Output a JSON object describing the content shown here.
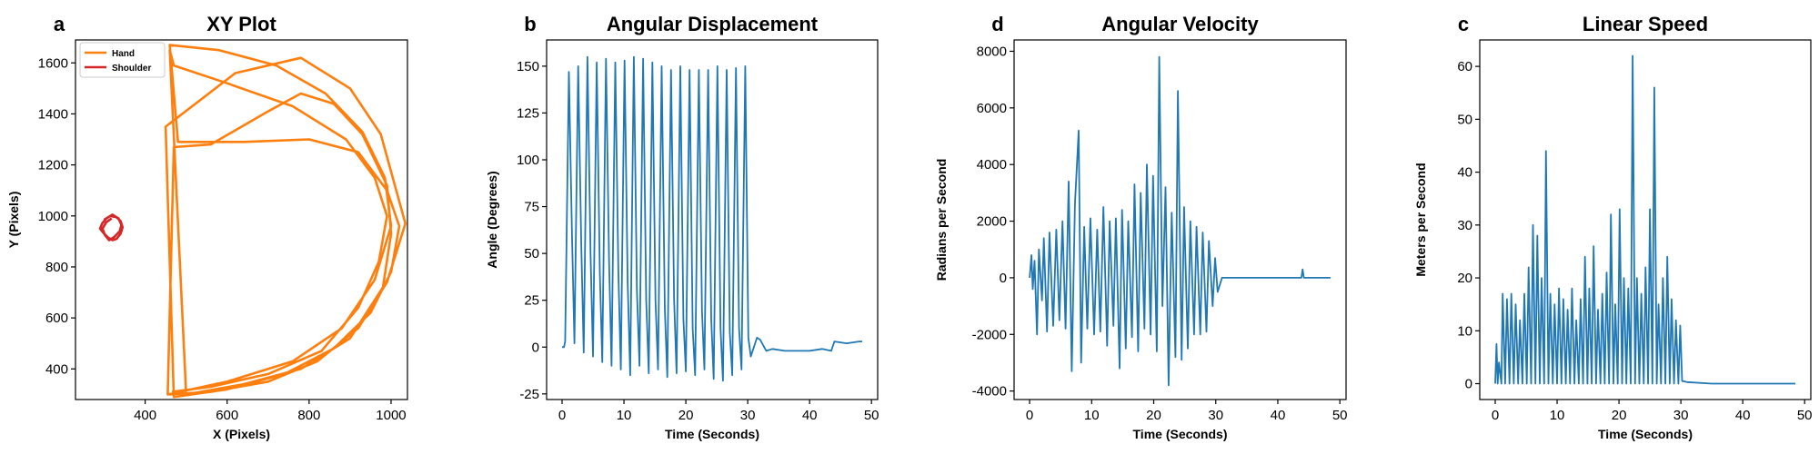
{
  "figure": {
    "colors": {
      "blue": "#1f77b4",
      "orange": "#ff7f0e",
      "red": "#d62728"
    }
  },
  "chart_data": [
    {
      "panel_letter": "a",
      "type": "line",
      "title": "XY Plot",
      "xlabel": "X (Pixels)",
      "ylabel": "Y (Pixels)",
      "xlim": [
        230,
        1040
      ],
      "ylim": [
        280,
        1690
      ],
      "xticks": [
        400,
        600,
        800,
        1000
      ],
      "yticks": [
        400,
        600,
        800,
        1000,
        1200,
        1400,
        1600
      ],
      "legend": {
        "placement": "top-left"
      },
      "series": [
        {
          "name": "Hand",
          "color": "#ff7f0e",
          "x": [
            455,
            600,
            760,
            880,
            960,
            1000,
            985,
            930,
            840,
            720,
            580,
            460,
            480,
            640,
            800,
            920,
            990,
            1020,
            1000,
            950,
            860,
            740,
            600,
            470,
            450,
            620,
            780,
            900,
            975,
            1035,
            990,
            920,
            820,
            700,
            560,
            455,
            470,
            560,
            700,
            780,
            860,
            930,
            990,
            1000,
            980,
            900,
            780,
            640,
            500,
            460,
            470,
            600,
            760,
            890,
            960,
            990,
            970,
            920,
            830,
            700,
            560,
            465
          ],
          "y": [
            300,
            350,
            430,
            560,
            750,
            960,
            1150,
            1330,
            1480,
            1590,
            1650,
            1670,
            1290,
            1290,
            1300,
            1250,
            1100,
            960,
            780,
            620,
            480,
            380,
            320,
            290,
            1350,
            1560,
            1620,
            1500,
            1320,
            970,
            740,
            560,
            430,
            350,
            310,
            300,
            1270,
            1280,
            1410,
            1480,
            1440,
            1320,
            1120,
            930,
            720,
            520,
            400,
            340,
            300,
            1650,
            1590,
            1520,
            1430,
            1300,
            1150,
            1000,
            820,
            640,
            470,
            380,
            330,
            310
          ]
        },
        {
          "name": "Shoulder",
          "color": "#d62728",
          "x": [
            300,
            315,
            330,
            340,
            345,
            340,
            330,
            320,
            310,
            300,
            290,
            295,
            305,
            320,
            335,
            342,
            338,
            325,
            312,
            302,
            296,
            305,
            318
          ],
          "y": [
            985,
            1000,
            995,
            980,
            955,
            930,
            910,
            905,
            915,
            930,
            950,
            970,
            990,
            1005,
            990,
            965,
            940,
            918,
            905,
            925,
            950,
            975,
            990
          ]
        }
      ]
    },
    {
      "panel_letter": "b",
      "type": "line",
      "title": "Angular Displacement",
      "xlabel": "Time (Seconds)",
      "ylabel": "Angle (Degrees)",
      "xlim": [
        -2.5,
        51
      ],
      "ylim": [
        -28,
        164
      ],
      "xticks": [
        0,
        10,
        20,
        30,
        40,
        50
      ],
      "yticks": [
        -25,
        0,
        25,
        50,
        75,
        100,
        125,
        150
      ],
      "series": [
        {
          "color": "#1f77b4",
          "x": [
            0,
            0.3,
            0.5,
            1.1,
            1.6,
            2.0,
            2.6,
            3.1,
            3.5,
            4.1,
            4.6,
            5.0,
            5.6,
            6.1,
            6.5,
            7.1,
            7.6,
            8.0,
            8.6,
            9.1,
            9.5,
            10.1,
            10.6,
            11.0,
            11.6,
            12.1,
            12.5,
            13.1,
            13.6,
            14.0,
            14.6,
            15.1,
            15.5,
            16.1,
            16.6,
            17.0,
            17.6,
            18.1,
            18.5,
            19.1,
            19.6,
            20.0,
            20.6,
            21.1,
            21.5,
            22.1,
            22.6,
            23.0,
            23.6,
            24.1,
            24.5,
            25.1,
            25.6,
            26.0,
            26.6,
            27.1,
            27.5,
            28.1,
            28.6,
            29.0,
            29.6,
            30.1,
            30.5,
            31.0,
            31.5,
            32.0,
            33.0,
            34.0,
            36.0,
            38.0,
            40.0,
            42.0,
            43.5,
            44.0,
            46.0,
            48.0,
            48.5
          ],
          "y": [
            0,
            0,
            3,
            147,
            60,
            2,
            150,
            55,
            -3,
            155,
            50,
            -5,
            152,
            40,
            -8,
            154,
            45,
            -10,
            152,
            40,
            -12,
            153,
            35,
            -15,
            155,
            30,
            -10,
            154,
            25,
            -14,
            152,
            25,
            -12,
            150,
            20,
            -16,
            148,
            25,
            -14,
            150,
            15,
            -13,
            148,
            10,
            -15,
            148,
            20,
            -12,
            148,
            15,
            -17,
            150,
            10,
            -18,
            148,
            8,
            -15,
            149,
            10,
            -12,
            150,
            5,
            -5,
            0,
            5,
            4,
            -2,
            -1,
            -2,
            -2,
            -2,
            -1,
            -2,
            3,
            2,
            3,
            3
          ]
        }
      ]
    },
    {
      "panel_letter": "d",
      "type": "line",
      "title": "Angular Velocity",
      "xlabel": "Time (Seconds)",
      "ylabel": "Radians per Second",
      "xlim": [
        -2.5,
        51
      ],
      "ylim": [
        -4300,
        8400
      ],
      "xticks": [
        0,
        10,
        20,
        30,
        40,
        50
      ],
      "yticks": [
        -4000,
        -2000,
        0,
        2000,
        4000,
        6000,
        8000
      ],
      "series": [
        {
          "color": "#1f77b4",
          "x": [
            0,
            0.3,
            0.5,
            0.8,
            1.2,
            1.5,
            2.0,
            2.3,
            2.8,
            3.2,
            3.8,
            4.3,
            4.8,
            5.3,
            5.8,
            6.3,
            6.8,
            7.3,
            7.9,
            8.3,
            8.8,
            9.3,
            9.8,
            10.4,
            10.9,
            11.4,
            11.9,
            12.5,
            12.9,
            13.5,
            13.9,
            14.5,
            14.9,
            15.5,
            15.9,
            16.5,
            16.9,
            17.5,
            17.9,
            18.5,
            18.9,
            19.5,
            19.9,
            20.5,
            20.9,
            21.4,
            21.9,
            22.4,
            22.9,
            23.5,
            23.9,
            24.5,
            24.9,
            25.5,
            25.9,
            26.5,
            26.9,
            27.5,
            27.9,
            28.5,
            28.9,
            29.5,
            29.9,
            30.3,
            31,
            32,
            33,
            35,
            40,
            43.8,
            44,
            44.2,
            48.5
          ],
          "y": [
            0,
            800,
            -400,
            600,
            -2000,
            1000,
            -800,
            1400,
            -1900,
            1600,
            -1700,
            1700,
            -1500,
            2000,
            -1800,
            3400,
            -3300,
            2600,
            5200,
            -3000,
            1800,
            -1800,
            2100,
            -2000,
            1700,
            -1900,
            2500,
            -2400,
            2000,
            -1700,
            2100,
            -3200,
            2400,
            -2500,
            2000,
            -2100,
            3300,
            -2600,
            3000,
            -1800,
            4000,
            -2000,
            3600,
            -2600,
            7800,
            -1000,
            3200,
            -3800,
            2300,
            -2800,
            6600,
            -2900,
            2500,
            -2500,
            2000,
            -2000,
            1800,
            -2000,
            1600,
            -1900,
            1300,
            -1000,
            700,
            -500,
            0,
            0,
            0,
            0,
            0,
            0,
            300,
            0,
            0
          ]
        }
      ]
    },
    {
      "panel_letter": "c",
      "type": "line",
      "title": "Linear Speed",
      "xlabel": "Time (Seconds)",
      "ylabel": "Meters per Second",
      "xlim": [
        -2.5,
        51
      ],
      "ylim": [
        -3,
        65
      ],
      "xticks": [
        0,
        10,
        20,
        30,
        40,
        50
      ],
      "yticks": [
        0,
        10,
        20,
        30,
        40,
        50,
        60
      ],
      "series": [
        {
          "color": "#1f77b4",
          "x": [
            0,
            0.2,
            0.4,
            0.6,
            1.0,
            1.2,
            1.6,
            1.9,
            2.3,
            2.6,
            3.0,
            3.3,
            3.7,
            4.0,
            4.4,
            4.7,
            5.1,
            5.4,
            5.8,
            6.1,
            6.5,
            6.8,
            7.2,
            7.5,
            7.9,
            8.2,
            8.6,
            8.9,
            9.3,
            9.6,
            10.0,
            10.3,
            10.7,
            11.0,
            11.4,
            11.7,
            12.1,
            12.4,
            12.8,
            13.1,
            13.5,
            13.8,
            14.2,
            14.5,
            14.9,
            15.2,
            15.6,
            15.9,
            16.3,
            16.6,
            17.0,
            17.3,
            17.7,
            18.0,
            18.4,
            18.7,
            19.1,
            19.4,
            19.8,
            20.1,
            20.5,
            20.8,
            21.2,
            21.5,
            21.9,
            22.2,
            22.6,
            22.9,
            23.3,
            23.6,
            24.0,
            24.3,
            24.7,
            25.0,
            25.4,
            25.7,
            26.1,
            26.4,
            26.8,
            27.1,
            27.5,
            27.8,
            28.2,
            28.5,
            28.9,
            29.2,
            29.6,
            29.9,
            30.2,
            31,
            35,
            40,
            45,
            48.5
          ],
          "y": [
            0,
            7.5,
            0,
            4,
            0,
            17,
            0,
            16,
            0,
            17,
            0,
            15,
            0,
            12,
            0,
            17,
            0,
            22,
            0,
            30,
            0,
            28,
            0,
            20,
            0,
            44,
            0,
            17,
            0,
            15,
            0,
            18,
            0,
            16,
            0,
            14,
            0,
            18,
            0,
            12,
            0,
            16,
            0,
            24,
            0,
            18,
            0,
            26,
            0,
            14,
            0,
            17,
            0,
            21,
            0,
            32,
            0,
            15,
            0,
            33,
            0,
            20,
            0,
            18,
            0,
            62,
            0,
            20,
            0,
            17,
            0,
            22,
            0,
            33,
            0,
            56,
            0,
            15,
            0,
            20,
            0,
            24,
            0,
            16,
            0,
            12,
            0,
            11,
            0.5,
            0.3,
            0,
            0,
            0,
            0
          ]
        }
      ]
    }
  ]
}
